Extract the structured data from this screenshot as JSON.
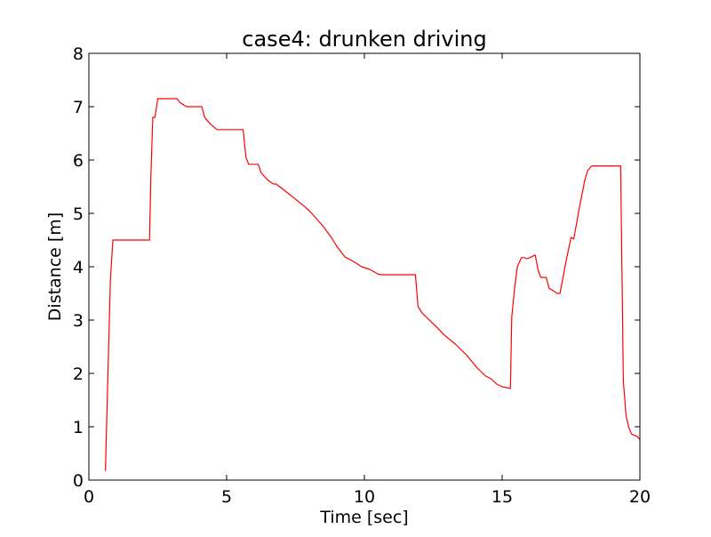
{
  "chart_data": {
    "type": "line",
    "title": "case4: drunken driving",
    "xlabel": "Time [sec]",
    "ylabel": "Distance [m]",
    "xlim": [
      0,
      20
    ],
    "ylim": [
      0,
      8
    ],
    "xticks": [
      0,
      5,
      10,
      15,
      20
    ],
    "xtick_labels": [
      "0",
      "5",
      "10",
      "15",
      "20"
    ],
    "yticks": [
      0,
      1,
      2,
      3,
      4,
      5,
      6,
      7,
      8
    ],
    "ytick_labels": [
      "0",
      "1",
      "2",
      "3",
      "4",
      "5",
      "6",
      "7",
      "8"
    ],
    "grid": false,
    "series": [
      {
        "color": "#ff0000",
        "x": [
          0.6,
          0.78,
          0.87,
          2.2,
          2.25,
          2.32,
          2.4,
          2.5,
          2.6,
          3.2,
          3.3,
          3.55,
          4.1,
          4.2,
          4.4,
          4.65,
          5.6,
          5.7,
          5.8,
          6.15,
          6.25,
          6.5,
          6.7,
          6.8,
          7.3,
          7.85,
          8.0,
          8.5,
          8.8,
          9.0,
          9.3,
          9.6,
          9.9,
          10.2,
          10.5,
          10.6,
          11.85,
          11.95,
          12.1,
          12.3,
          12.6,
          12.9,
          13.3,
          13.7,
          14.1,
          14.4,
          14.6,
          14.8,
          15.0,
          15.3,
          15.35,
          15.45,
          15.55,
          15.7,
          15.8,
          15.9,
          16.0,
          16.2,
          16.3,
          16.4,
          16.6,
          16.7,
          16.85,
          17.0,
          17.1,
          17.3,
          17.5,
          17.6,
          17.8,
          18.0,
          18.1,
          18.25,
          18.5,
          19.25,
          19.3,
          19.4,
          19.5,
          19.6,
          19.7,
          19.9,
          20.0
        ],
        "y": [
          0.17,
          3.75,
          4.5,
          4.5,
          5.7,
          6.8,
          6.8,
          7.15,
          7.15,
          7.15,
          7.08,
          7.0,
          7.0,
          6.8,
          6.68,
          6.57,
          6.57,
          6.05,
          5.92,
          5.92,
          5.76,
          5.62,
          5.55,
          5.55,
          5.35,
          5.12,
          5.05,
          4.76,
          4.55,
          4.38,
          4.18,
          4.1,
          4.0,
          3.95,
          3.86,
          3.85,
          3.85,
          3.25,
          3.13,
          3.03,
          2.88,
          2.72,
          2.55,
          2.35,
          2.1,
          1.95,
          1.9,
          1.8,
          1.75,
          1.72,
          3.05,
          3.6,
          4.0,
          4.17,
          4.17,
          4.15,
          4.17,
          4.22,
          3.95,
          3.8,
          3.8,
          3.6,
          3.55,
          3.5,
          3.5,
          4.05,
          4.55,
          4.52,
          5.1,
          5.62,
          5.8,
          5.89,
          5.89,
          5.89,
          5.89,
          1.85,
          1.2,
          0.98,
          0.86,
          0.82,
          0.76
        ]
      }
    ]
  }
}
